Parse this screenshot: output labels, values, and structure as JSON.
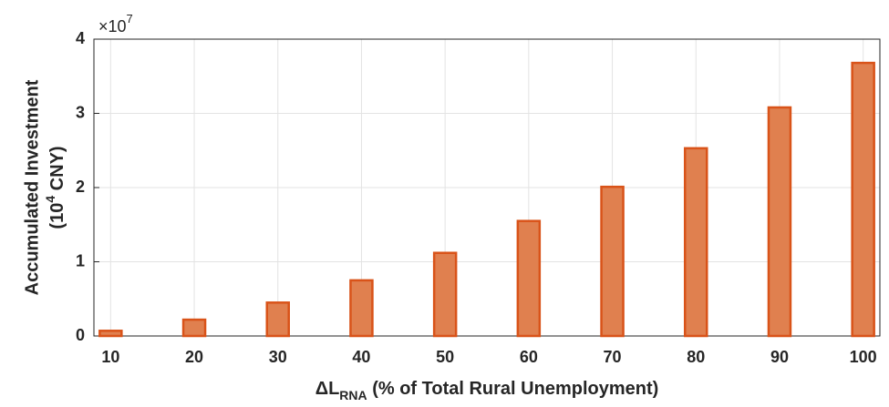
{
  "chart_data": {
    "type": "bar",
    "x": [
      10,
      20,
      30,
      40,
      50,
      60,
      70,
      80,
      90,
      100
    ],
    "values": [
      0.07,
      0.22,
      0.45,
      0.75,
      1.12,
      1.55,
      2.01,
      2.53,
      3.08,
      3.68
    ],
    "color": "#e0804f",
    "edge_color": "#d95319",
    "xlim": [
      8,
      102
    ],
    "xticks": [
      10,
      20,
      30,
      40,
      50,
      60,
      70,
      80,
      90,
      100
    ],
    "ylim": [
      0,
      4
    ],
    "yticks": [
      0,
      1,
      2,
      3,
      4
    ],
    "y_scale_label": "×10",
    "y_scale_exponent": "7",
    "ylabel_line1": "Accumulated Investment",
    "ylabel_line2": [
      "(10",
      "4",
      " CNY)"
    ],
    "xlabel": [
      "ΔL",
      "RNA",
      " (% of Total Rural Unemployment)"
    ],
    "grid": true
  }
}
